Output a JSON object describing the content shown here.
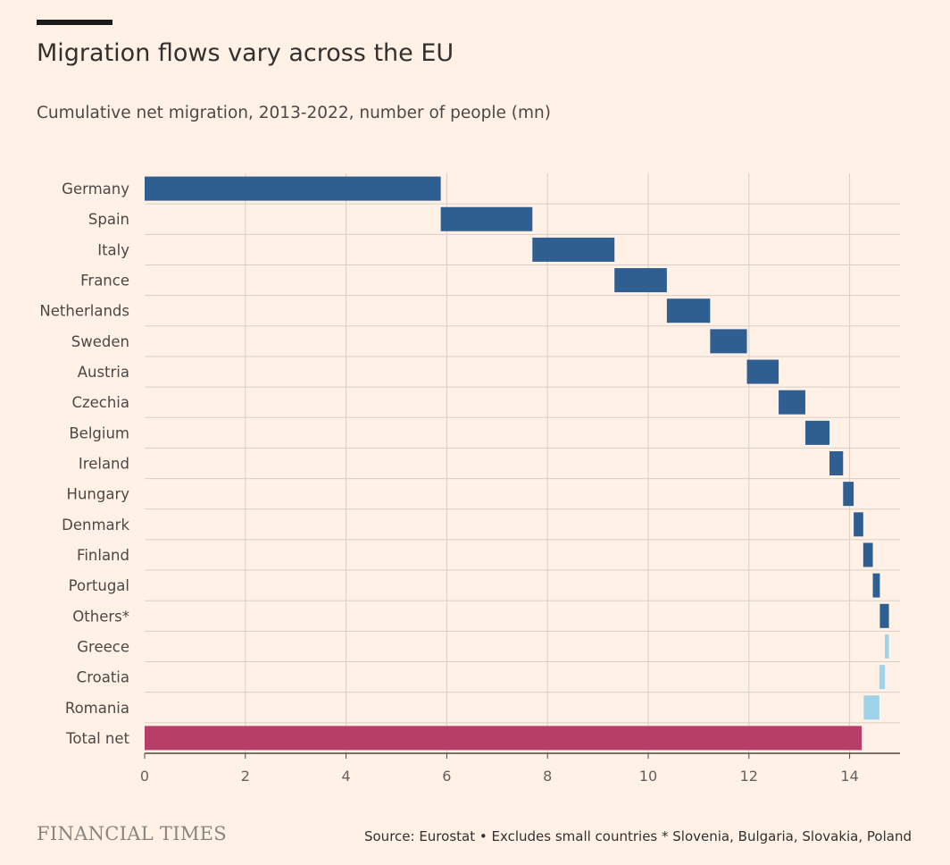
{
  "header": {
    "title": "Migration flows vary across the EU",
    "subtitle": "Cumulative net migration, 2013-2022, number of people (mn)"
  },
  "footer": {
    "logo": "FINANCIAL TIMES",
    "source": "Source: Eurostat • Excludes small countries * Slovenia, Bulgaria, Slovakia, Poland"
  },
  "colors": {
    "positive": "#2f5e91",
    "negative": "#9fd3ea",
    "total": "#b73e66",
    "gridline": "#d7cfc8",
    "axis": "#4d4845"
  },
  "chart_data": {
    "type": "waterfall",
    "title": "Migration flows vary across the EU",
    "xlabel": "",
    "ylabel": "",
    "xlim": [
      0,
      15
    ],
    "xticks": [
      0,
      2,
      4,
      6,
      8,
      10,
      12,
      14
    ],
    "categories": [
      "Germany",
      "Spain",
      "Italy",
      "France",
      "Netherlands",
      "Sweden",
      "Austria",
      "Czechia",
      "Belgium",
      "Ireland",
      "Hungary",
      "Denmark",
      "Finland",
      "Portugal",
      "Others*",
      "Greece",
      "Croatia",
      "Romania",
      "Total net"
    ],
    "values": [
      5.88,
      1.82,
      1.63,
      1.04,
      0.86,
      0.73,
      0.63,
      0.53,
      0.48,
      0.27,
      0.21,
      0.19,
      0.19,
      0.14,
      0.18,
      -0.08,
      -0.11,
      -0.31,
      14.24
    ],
    "kind": [
      "positive",
      "positive",
      "positive",
      "positive",
      "positive",
      "positive",
      "positive",
      "positive",
      "positive",
      "positive",
      "positive",
      "positive",
      "positive",
      "positive",
      "positive",
      "negative",
      "negative",
      "negative",
      "total"
    ]
  }
}
